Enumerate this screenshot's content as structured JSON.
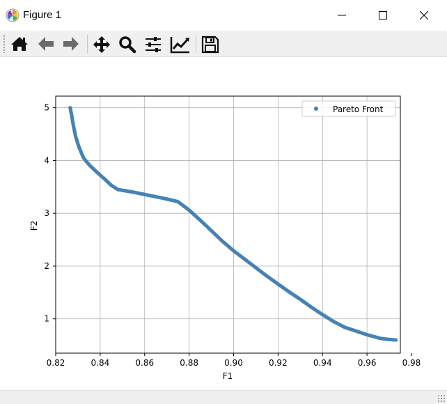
{
  "window": {
    "title": "Figure 1"
  },
  "toolbar": {
    "buttons": [
      {
        "name": "home-icon"
      },
      {
        "name": "back-arrow-icon"
      },
      {
        "name": "forward-arrow-icon"
      },
      {
        "name": "pan-icon"
      },
      {
        "name": "zoom-icon"
      },
      {
        "name": "configure-subplots-icon"
      },
      {
        "name": "edit-axis-icon"
      },
      {
        "name": "save-icon"
      }
    ]
  },
  "chart_data": {
    "type": "scatter",
    "title": "",
    "xlabel": "F1",
    "ylabel": "F2",
    "xlim": [
      0.82,
      0.975
    ],
    "ylim": [
      0.35,
      5.22
    ],
    "xticks": [
      0.82,
      0.84,
      0.86,
      0.88,
      0.9,
      0.92,
      0.94,
      0.96,
      0.98
    ],
    "xtick_labels": [
      "0.82",
      "0.84",
      "0.86",
      "0.88",
      "0.90",
      "0.92",
      "0.94",
      "0.96",
      "0.98"
    ],
    "yticks": [
      1,
      2,
      3,
      4,
      5
    ],
    "ytick_labels": [
      "1",
      "2",
      "3",
      "4",
      "5"
    ],
    "grid": true,
    "legend": {
      "position": "top-right"
    },
    "series": [
      {
        "name": "Pareto Front",
        "color": "#4682b4",
        "points": [
          [
            0.8265,
            5.0
          ],
          [
            0.8272,
            4.85
          ],
          [
            0.828,
            4.65
          ],
          [
            0.829,
            4.45
          ],
          [
            0.8305,
            4.25
          ],
          [
            0.8325,
            4.05
          ],
          [
            0.835,
            3.92
          ],
          [
            0.8385,
            3.78
          ],
          [
            0.842,
            3.65
          ],
          [
            0.845,
            3.53
          ],
          [
            0.848,
            3.45
          ],
          [
            0.855,
            3.4
          ],
          [
            0.862,
            3.34
          ],
          [
            0.869,
            3.28
          ],
          [
            0.875,
            3.22
          ],
          [
            0.88,
            3.06
          ],
          [
            0.885,
            2.87
          ],
          [
            0.89,
            2.67
          ],
          [
            0.895,
            2.47
          ],
          [
            0.9,
            2.29
          ],
          [
            0.905,
            2.13
          ],
          [
            0.91,
            1.97
          ],
          [
            0.915,
            1.81
          ],
          [
            0.92,
            1.66
          ],
          [
            0.925,
            1.51
          ],
          [
            0.93,
            1.37
          ],
          [
            0.935,
            1.22
          ],
          [
            0.94,
            1.08
          ],
          [
            0.945,
            0.95
          ],
          [
            0.95,
            0.84
          ],
          [
            0.955,
            0.77
          ],
          [
            0.96,
            0.7
          ],
          [
            0.966,
            0.63
          ],
          [
            0.97,
            0.61
          ],
          [
            0.973,
            0.6
          ]
        ]
      }
    ]
  }
}
